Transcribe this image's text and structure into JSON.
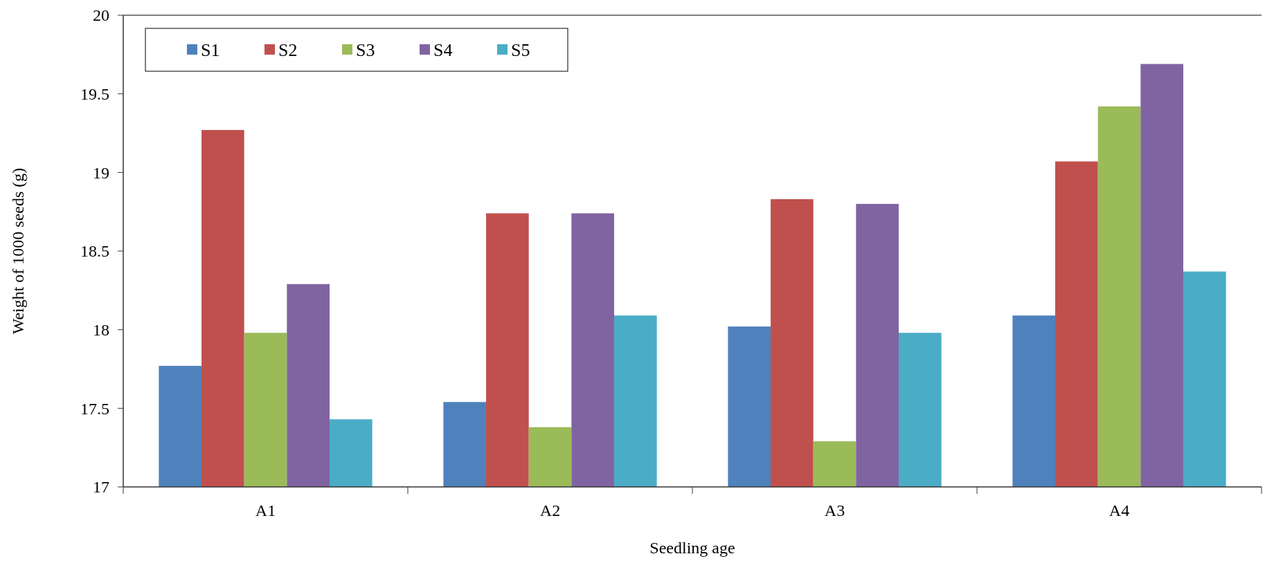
{
  "chart_data": {
    "type": "bar",
    "xlabel": "Seedling age",
    "ylabel": "Weight of 1000 seeds (g)",
    "categories": [
      "A1",
      "A2",
      "A3",
      "A4"
    ],
    "series": [
      {
        "name": "S1",
        "color": "#4f81bd",
        "values": [
          17.77,
          17.54,
          18.02,
          18.09
        ]
      },
      {
        "name": "S2",
        "color": "#c0504d",
        "values": [
          19.27,
          18.74,
          18.83,
          19.07
        ]
      },
      {
        "name": "S3",
        "color": "#9bbb59",
        "values": [
          17.98,
          17.38,
          17.29,
          19.42
        ]
      },
      {
        "name": "S4",
        "color": "#8064a2",
        "values": [
          18.29,
          18.74,
          18.8,
          19.69
        ]
      },
      {
        "name": "S5",
        "color": "#4bacc6",
        "values": [
          17.43,
          18.09,
          17.98,
          18.37
        ]
      }
    ],
    "ylim": [
      17,
      20
    ],
    "yticks": [
      17,
      17.5,
      18,
      18.5,
      19,
      19.5,
      20
    ],
    "legend": "top left"
  }
}
